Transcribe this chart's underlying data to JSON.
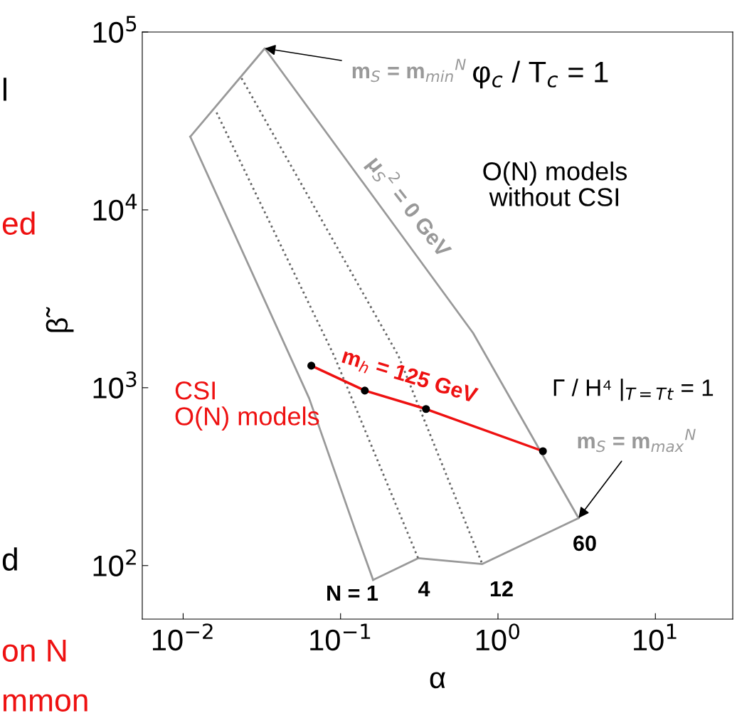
{
  "chart_data": {
    "type": "line",
    "xlabel": "α",
    "ylabel": "β̃",
    "log": "xy",
    "grid": false,
    "legend": false,
    "xlim": [
      0.0055,
      31
    ],
    "ylim": [
      50,
      100000
    ],
    "xticks": [
      {
        "value": 0.01,
        "label": "10$^{−2}$"
      },
      {
        "value": 0.1,
        "label": "10$^{−1}$"
      },
      {
        "value": 1,
        "label": "10$^{0}$"
      },
      {
        "value": 10,
        "label": "10$^{1}$"
      }
    ],
    "yticks": [
      {
        "value": 100,
        "label": "10$^{2}$"
      },
      {
        "value": 1000,
        "label": "10$^{3}$"
      },
      {
        "value": 10000,
        "label": "10$^{4}$"
      },
      {
        "value": 100000,
        "label": "10$^{5}$"
      }
    ],
    "series": [
      {
        "color": "#999999",
        "line_style": "solid",
        "marker": "none",
        "x": [
          0.0111,
          0.033,
          0.695,
          3.25
        ],
        "values": [
          25800,
          80900,
          2030,
          185
        ]
      },
      {
        "color": "#999999",
        "line_style": "solid",
        "marker": "none",
        "x": [
          0.161,
          0.311,
          0.795,
          3.25
        ],
        "values": [
          83,
          110,
          102,
          185
        ]
      },
      {
        "color": "#999999",
        "line_style": "solid",
        "marker": "none",
        "x": [
          0.0111,
          0.0632,
          0.124,
          0.161
        ],
        "values": [
          25800,
          871,
          158,
          83
        ]
      },
      {
        "color": "#666666",
        "line_style": "dotted",
        "marker": "none",
        "x": [
          0.0163,
          0.091,
          0.311
        ],
        "values": [
          35300,
          1513,
          110
        ]
      },
      {
        "color": "#666666",
        "line_style": "dotted",
        "marker": "none",
        "x": [
          0.0235,
          0.233,
          0.795
        ],
        "values": [
          55000,
          1513,
          102
        ]
      },
      {
        "color": "#ee1111",
        "line_style": "solid",
        "marker": "circle",
        "x": [
          0.0652,
          0.1426,
          0.349,
          1.93
        ],
        "values": [
          1330,
          964,
          759,
          440
        ]
      }
    ],
    "annotations": [
      {
        "text": "m$_{S}$ = m$_{min}$$^{N}$",
        "x": 0.033,
        "y": 80900
      },
      "φ$_{c}$ / T$_{c}$ = 1",
      "μ$_{S}$$^{2}$ = 0 GeV",
      "O(N) models\nwithout CSI",
      "m$_{h}$ = 125 GeV",
      "CSI\nO(N) models",
      "Γ / H⁴ |$_{T=T}$$_{t}$ = 1",
      {
        "text": "m$_{S}$ = m$_{max}$$^{N}$",
        "x": 3.25,
        "y": 185
      },
      "N = 1",
      "4",
      "12",
      "60",
      "l",
      "ed",
      "d",
      "on N",
      "mmon"
    ]
  }
}
